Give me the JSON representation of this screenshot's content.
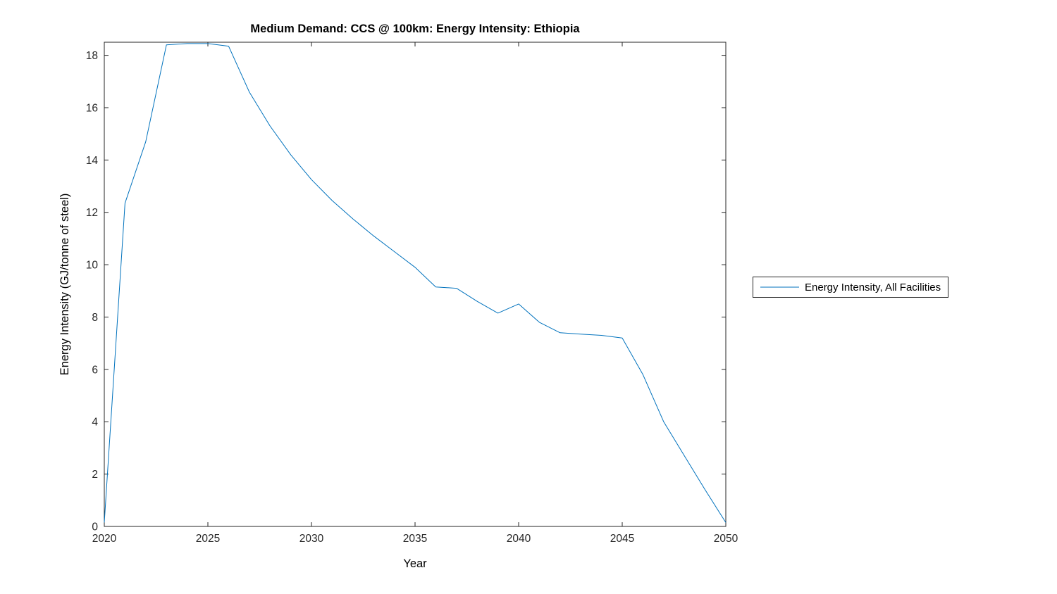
{
  "chart_data": {
    "type": "line",
    "title": "Medium Demand: CCS @ 100km: Energy Intensity: Ethiopia",
    "xlabel": "Year",
    "ylabel": "Energy Intensity (GJ/tonne of steel)",
    "xlim": [
      2020,
      2050
    ],
    "ylim": [
      0,
      18.5
    ],
    "x_ticks": [
      2020,
      2025,
      2030,
      2035,
      2040,
      2045,
      2050
    ],
    "y_ticks": [
      0,
      2,
      4,
      6,
      8,
      10,
      12,
      14,
      16,
      18
    ],
    "grid": false,
    "line_color": "#0072BD",
    "axis_color": "#262626",
    "legend": {
      "position": "right-outside",
      "entries": [
        "Energy Intensity, All Facilities"
      ]
    },
    "series": [
      {
        "name": "Energy Intensity, All Facilities",
        "x": [
          2020,
          2021,
          2022,
          2023,
          2024,
          2025,
          2026,
          2027,
          2028,
          2029,
          2030,
          2031,
          2032,
          2033,
          2034,
          2035,
          2036,
          2037,
          2038,
          2039,
          2040,
          2041,
          2042,
          2043,
          2044,
          2045,
          2046,
          2047,
          2048,
          2049,
          2050
        ],
        "y": [
          0.15,
          12.35,
          14.7,
          18.4,
          18.45,
          18.45,
          18.35,
          16.6,
          15.3,
          14.2,
          13.25,
          12.45,
          11.75,
          11.1,
          10.5,
          9.9,
          9.15,
          9.1,
          8.6,
          8.15,
          8.5,
          7.8,
          7.4,
          7.35,
          7.3,
          7.2,
          5.8,
          4.0,
          2.7,
          1.4,
          0.15
        ]
      }
    ]
  }
}
